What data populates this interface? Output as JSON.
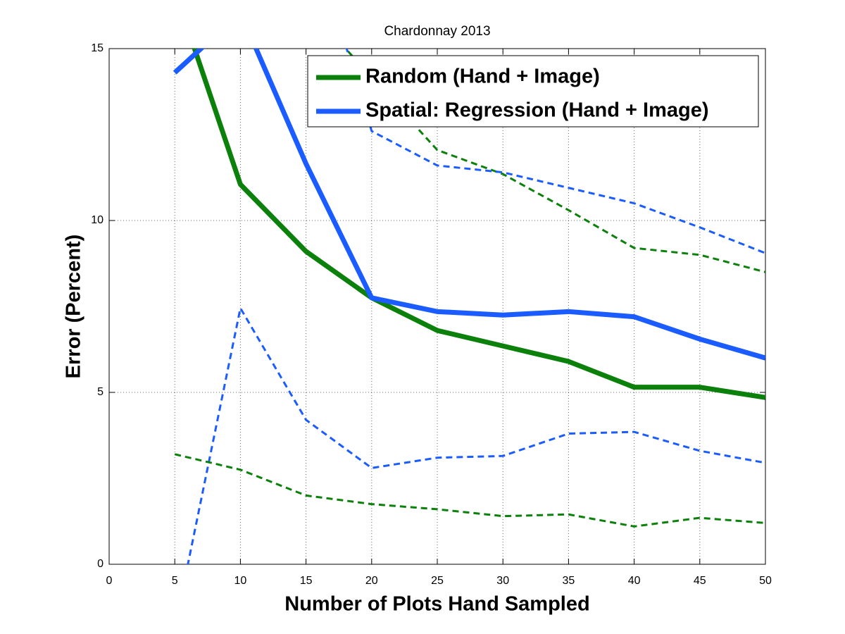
{
  "chart_data": {
    "type": "line",
    "title": "Chardonnay 2013",
    "x_label": "Number of Plots Hand Sampled",
    "y_label": "Error (Percent)",
    "x": [
      5,
      10,
      15,
      20,
      25,
      30,
      35,
      40,
      45,
      50
    ],
    "series": [
      {
        "color": "#0b800b",
        "dashed": true,
        "width": 3,
        "values": [
          null,
          null,
          16.3,
          14.15,
          12.05,
          11.35,
          10.3,
          9.2,
          9.0,
          8.5
        ]
      },
      {
        "color": "#1a5cff",
        "dashed": true,
        "width": 3,
        "values": [
          null,
          null,
          18.9,
          12.6,
          11.6,
          11.4,
          10.95,
          10.5,
          9.8,
          9.05
        ]
      },
      {
        "color": "#1a5cff",
        "dashed": true,
        "width": 3,
        "values": [
          -1.86,
          7.45,
          4.2,
          2.8,
          3.1,
          3.15,
          3.8,
          3.85,
          3.3,
          2.95
        ]
      },
      {
        "color": "#0b800b",
        "dashed": true,
        "width": 3,
        "values": [
          3.2,
          2.75,
          2.0,
          1.75,
          1.6,
          1.4,
          1.45,
          1.1,
          1.35,
          1.2
        ]
      },
      {
        "name": "Random (Hand + Image)",
        "color": "#0b800b",
        "dashed": false,
        "width": 7,
        "values": [
          16.7,
          11.05,
          9.1,
          7.75,
          6.8,
          6.35,
          5.9,
          5.15,
          5.15,
          4.85
        ]
      },
      {
        "name": "Spatial: Regression (Hand + Image)",
        "color": "#1a5cff",
        "dashed": false,
        "width": 7,
        "values": [
          14.3,
          16.05,
          11.65,
          7.75,
          7.35,
          7.25,
          7.35,
          7.2,
          6.55,
          6.0
        ]
      }
    ],
    "xlim": [
      0,
      50
    ],
    "xticks": [
      0,
      5,
      10,
      15,
      20,
      25,
      30,
      35,
      40,
      45,
      50
    ],
    "ylim": [
      0,
      15
    ],
    "yticks": [
      0,
      5,
      10,
      15
    ],
    "grid": true,
    "legend": "upper right"
  }
}
